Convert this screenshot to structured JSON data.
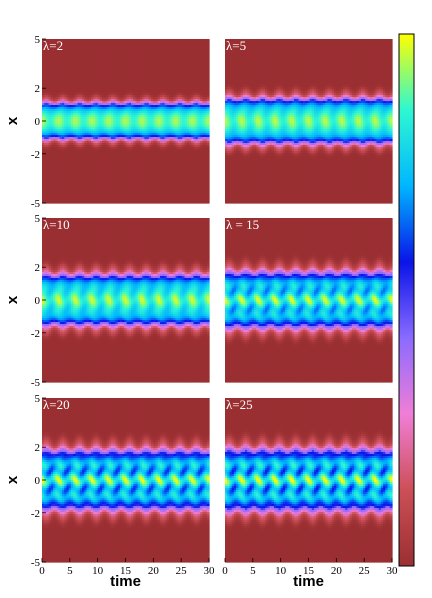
{
  "chart_data": {
    "type": "heatmap",
    "layout": "3x2 panel grid with shared colorbar at right",
    "xlabel": "time",
    "ylabel": "x",
    "xlim": [
      0,
      30
    ],
    "ylim": [
      -5,
      5
    ],
    "xticks": [
      "0",
      "5",
      "10",
      "15",
      "20",
      "25",
      "30"
    ],
    "yticks": [
      "-5",
      "-2",
      "0",
      "2",
      "5"
    ],
    "colormap": [
      "#9a2f32",
      "#cc4f57",
      "#f07ed6",
      "#8a6bff",
      "#0a14e8",
      "#00b6ff",
      "#2ef7d2",
      "#ffff00"
    ],
    "colorbar": {
      "position": "right",
      "tick_labels": false
    },
    "grid": false,
    "panels": [
      {
        "label": "λ=2",
        "width": 1.0,
        "modulation": 0.0,
        "oscillation_depth": 0.12,
        "pattern": "single band with weak periodic oscillation"
      },
      {
        "label": "λ=5",
        "width": 1.25,
        "modulation": 0.05,
        "oscillation_depth": 0.15,
        "pattern": "single band with weak periodic oscillation"
      },
      {
        "label": "λ=10",
        "width": 1.4,
        "modulation": 0.12,
        "oscillation_depth": 0.2,
        "pattern": "band with developing stripes"
      },
      {
        "label": "λ = 15",
        "width": 1.55,
        "modulation": 0.3,
        "oscillation_depth": 0.25,
        "pattern": "band with inner stripes and wavy edges"
      },
      {
        "label": "λ=20",
        "width": 1.65,
        "modulation": 0.4,
        "oscillation_depth": 0.28,
        "pattern": "band with inner stripes and wavy edges"
      },
      {
        "label": "λ=25",
        "width": 1.7,
        "modulation": 0.42,
        "oscillation_depth": 0.3,
        "pattern": "band with inner stripes and wavy edges"
      }
    ]
  }
}
